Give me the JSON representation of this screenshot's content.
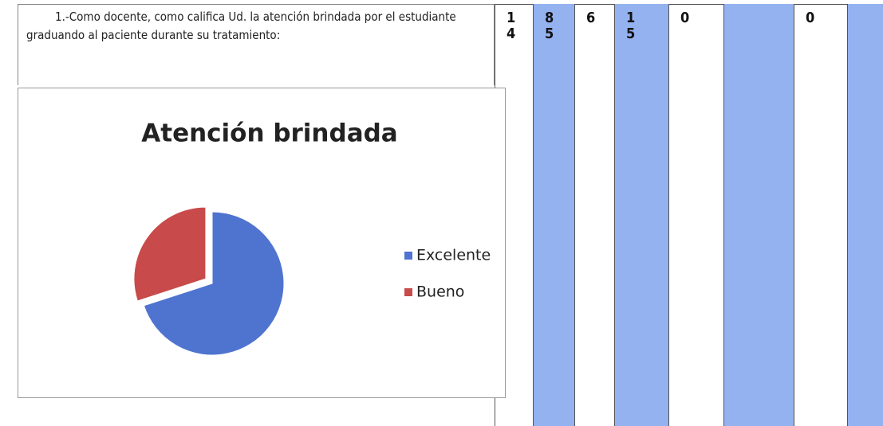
{
  "question": "1.-Como docente, como califica Ud.  la atención brindada por el estudiante  graduando al paciente  durante su tratamiento:",
  "table": {
    "cells": [
      "14",
      "85",
      "6",
      "15",
      "0",
      "0"
    ]
  },
  "chart_data": {
    "type": "pie",
    "title": "Atención brindada",
    "categories": [
      "Excelente",
      "Bueno"
    ],
    "values": [
      70,
      30
    ],
    "colors": [
      "#4f74d0",
      "#c84a4a"
    ]
  }
}
